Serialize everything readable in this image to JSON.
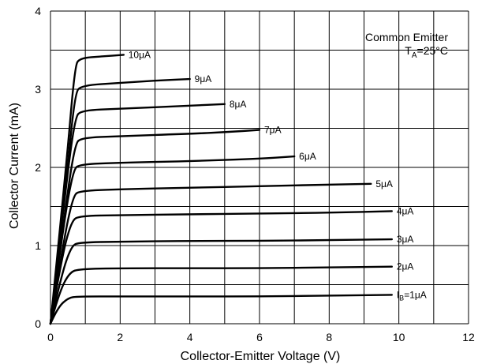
{
  "chart_data": {
    "type": "line",
    "title": "",
    "xlabel": "Collector-Emitter Voltage (V)",
    "ylabel": "Collector Current (mA)",
    "xlim": [
      0,
      12
    ],
    "ylim": [
      0,
      4
    ],
    "x_ticks": [
      "0",
      "2",
      "4",
      "6",
      "8",
      "10",
      "12"
    ],
    "y_ticks": [
      "0",
      "1",
      "2",
      "3",
      "4"
    ],
    "grid": true,
    "annotation": {
      "line1": "Common Emitter",
      "line2_main": "T",
      "line2_sub": "A",
      "line2_rest": "=25°C"
    },
    "series": [
      {
        "name": "IB=1μA",
        "label_main": "I",
        "label_sub": "B",
        "label_rest": "=1μA",
        "x": [
          0,
          0.2,
          0.5,
          0.8,
          2,
          4,
          6,
          8,
          9.8
        ],
        "y": [
          0,
          0.2,
          0.33,
          0.35,
          0.35,
          0.35,
          0.35,
          0.36,
          0.37
        ]
      },
      {
        "name": "2μA",
        "label_main": "2μA",
        "x": [
          0,
          0.25,
          0.55,
          0.85,
          2,
          4,
          6,
          8,
          9.8
        ],
        "y": [
          0,
          0.4,
          0.66,
          0.7,
          0.71,
          0.71,
          0.71,
          0.72,
          0.73
        ]
      },
      {
        "name": "3μA",
        "label_main": "3μA",
        "x": [
          0,
          0.3,
          0.6,
          0.85,
          2,
          4,
          6,
          8,
          9.8
        ],
        "y": [
          0,
          0.6,
          1.0,
          1.04,
          1.05,
          1.06,
          1.06,
          1.07,
          1.08
        ]
      },
      {
        "name": "4μA",
        "label_main": "4μA",
        "x": [
          0,
          0.3,
          0.6,
          0.85,
          2,
          4,
          6,
          8,
          9.8
        ],
        "y": [
          0,
          0.8,
          1.32,
          1.38,
          1.39,
          1.4,
          1.41,
          1.42,
          1.44
        ]
      },
      {
        "name": "5μA",
        "label_main": "5μA",
        "x": [
          0,
          0.35,
          0.65,
          0.85,
          2,
          4,
          6,
          8,
          9.2
        ],
        "y": [
          0,
          1.0,
          1.64,
          1.7,
          1.72,
          1.74,
          1.76,
          1.78,
          1.79
        ]
      },
      {
        "name": "6μA",
        "label_main": "6μA",
        "x": [
          0,
          0.35,
          0.65,
          0.85,
          2,
          4,
          6,
          7.0
        ],
        "y": [
          0,
          1.2,
          1.97,
          2.04,
          2.06,
          2.08,
          2.11,
          2.14
        ]
      },
      {
        "name": "7μA",
        "label_main": "7μA",
        "x": [
          0,
          0.4,
          0.7,
          0.9,
          2,
          4,
          5.0,
          6.0
        ],
        "y": [
          0,
          1.4,
          2.3,
          2.38,
          2.4,
          2.43,
          2.45,
          2.48
        ]
      },
      {
        "name": "8μA",
        "label_main": "8μA",
        "x": [
          0,
          0.4,
          0.7,
          0.9,
          2,
          4,
          5.0
        ],
        "y": [
          0,
          1.6,
          2.64,
          2.73,
          2.75,
          2.79,
          2.81
        ]
      },
      {
        "name": "9μA",
        "label_main": "9μA",
        "x": [
          0,
          0.45,
          0.7,
          0.9,
          2,
          3,
          4.0
        ],
        "y": [
          0,
          1.8,
          2.95,
          3.05,
          3.08,
          3.11,
          3.13
        ]
      },
      {
        "name": "10μA",
        "label_main": "10μA",
        "x": [
          0,
          0.45,
          0.7,
          0.85,
          1.5,
          2.1
        ],
        "y": [
          0,
          2.0,
          3.3,
          3.4,
          3.42,
          3.44
        ]
      }
    ]
  }
}
